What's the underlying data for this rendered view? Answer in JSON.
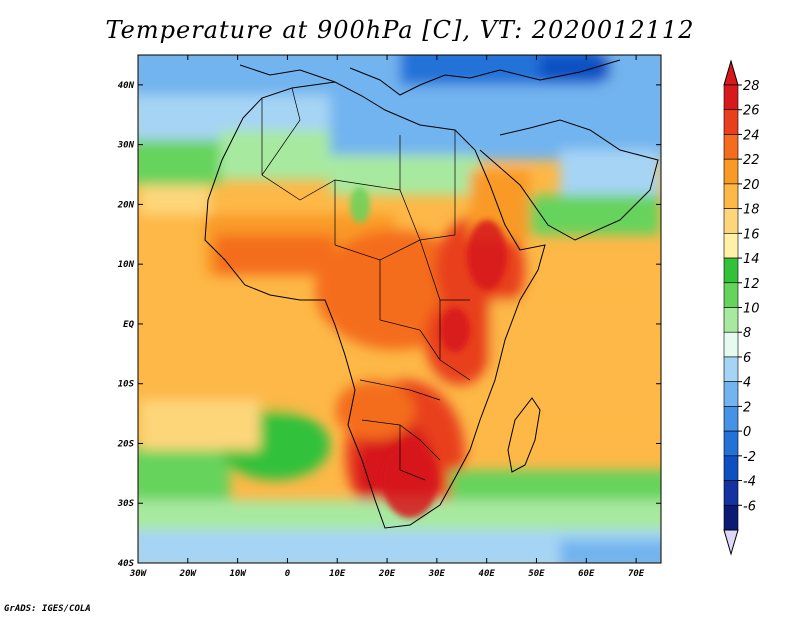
{
  "title": "Temperature at 900hPa [C], VT: 2020012112",
  "credit": "GrADS: IGES/COLA",
  "map": {
    "lon_range": [
      -30,
      75
    ],
    "lat_range": [
      -40,
      45
    ],
    "lon_ticks": [
      {
        "value": -30,
        "label": "30W"
      },
      {
        "value": -20,
        "label": "20W"
      },
      {
        "value": -10,
        "label": "10W"
      },
      {
        "value": 0,
        "label": "0"
      },
      {
        "value": 10,
        "label": "10E"
      },
      {
        "value": 20,
        "label": "20E"
      },
      {
        "value": 30,
        "label": "30E"
      },
      {
        "value": 40,
        "label": "40E"
      },
      {
        "value": 50,
        "label": "50E"
      },
      {
        "value": 60,
        "label": "60E"
      },
      {
        "value": 70,
        "label": "70E"
      }
    ],
    "lat_ticks": [
      {
        "value": 40,
        "label": "40N"
      },
      {
        "value": 30,
        "label": "30N"
      },
      {
        "value": 20,
        "label": "20N"
      },
      {
        "value": 10,
        "label": "10N"
      },
      {
        "value": 0,
        "label": "EQ"
      },
      {
        "value": -10,
        "label": "10S"
      },
      {
        "value": -20,
        "label": "20S"
      },
      {
        "value": -30,
        "label": "30S"
      },
      {
        "value": -40,
        "label": "40S"
      }
    ]
  },
  "colorbar": {
    "labels": [
      "28",
      "26",
      "24",
      "22",
      "20",
      "18",
      "16",
      "14",
      "12",
      "10",
      "8",
      "6",
      "4",
      "2",
      "0",
      "-2",
      "-4",
      "-6"
    ],
    "colors": [
      "#d7191c",
      "#e8401c",
      "#f46d1e",
      "#f99a26",
      "#fdb847",
      "#fdd67a",
      "#fff1a8",
      "#33c13a",
      "#66d35c",
      "#a8e9a0",
      "#e6fbf0",
      "#a6d4f5",
      "#72b4ef",
      "#4693e6",
      "#2472d8",
      "#0e50c2",
      "#1533a0",
      "#0a1a75"
    ],
    "top_color": "#d7191c",
    "bottom_color": "#ddd8f5"
  }
}
